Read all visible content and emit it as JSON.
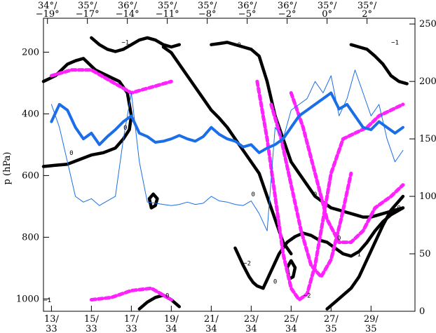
{
  "chart_data": {
    "type": "line",
    "title": "",
    "ylabel_left": "p (hPa)",
    "ylabel_right": "",
    "ylim_left": [
      1040,
      90
    ],
    "ylim_right": [
      0,
      255
    ],
    "xlim": [
      12.6,
      31.2
    ],
    "bottom_ticks": [
      {
        "x": 13,
        "label": "13/\n33"
      },
      {
        "x": 15,
        "label": "15/\n33"
      },
      {
        "x": 17,
        "label": "17/\n33"
      },
      {
        "x": 19,
        "label": "19/\n34"
      },
      {
        "x": 21,
        "label": "21/\n34"
      },
      {
        "x": 23,
        "label": "23/\n34"
      },
      {
        "x": 25,
        "label": "25/\n34"
      },
      {
        "x": 27,
        "label": "27/\n35"
      },
      {
        "x": 29,
        "label": "29/\n35"
      }
    ],
    "top_ticks": [
      {
        "x": 12.8,
        "label": "34°/\n−19°"
      },
      {
        "x": 14.8,
        "label": "35°/\n−17°"
      },
      {
        "x": 16.8,
        "label": "36°/\n−14°"
      },
      {
        "x": 18.8,
        "label": "35°/\n−11°"
      },
      {
        "x": 20.8,
        "label": "35°/\n−8°"
      },
      {
        "x": 22.8,
        "label": "36°/\n−5°"
      },
      {
        "x": 24.8,
        "label": "36°/\n−2°"
      },
      {
        "x": 26.8,
        "label": "35°/\n0°"
      },
      {
        "x": 28.8,
        "label": "35°/\n2°"
      }
    ],
    "left_ticks": [
      200,
      400,
      600,
      800,
      1000
    ],
    "right_ticks": [
      0,
      50,
      100,
      150,
      200,
      250
    ],
    "series": [
      {
        "style": "thick-blue",
        "color": "#1a6ee8",
        "x": [
          13.0,
          13.4,
          13.8,
          14.2,
          14.6,
          15.0,
          15.4,
          15.8,
          16.2,
          16.6,
          17.0,
          17.4,
          17.8,
          18.2,
          18.6,
          19.0,
          19.4,
          19.8,
          20.2,
          20.6,
          21.0,
          21.4,
          21.8,
          22.2,
          22.6,
          23.0,
          23.4,
          23.8,
          24.2,
          24.6,
          25.0,
          25.4,
          25.8,
          26.2,
          26.6,
          27.0,
          27.4,
          27.8,
          28.2,
          28.6,
          29.0,
          29.4,
          29.8,
          30.2,
          30.6
        ],
        "y": [
          165,
          180,
          175,
          160,
          150,
          155,
          145,
          152,
          158,
          165,
          170,
          155,
          152,
          147,
          148,
          150,
          153,
          150,
          148,
          152,
          160,
          154,
          150,
          148,
          143,
          145,
          138,
          142,
          145,
          150,
          160,
          170,
          175,
          180,
          185,
          190,
          176,
          180,
          170,
          160,
          158,
          165,
          160,
          155,
          160
        ]
      },
      {
        "style": "thin-blue",
        "color": "#1a6ee8",
        "x": [
          13.0,
          13.4,
          13.8,
          14.2,
          14.6,
          15.0,
          15.4,
          15.8,
          16.2,
          16.6,
          17.0,
          17.4,
          17.8,
          18.2,
          18.6,
          19.0,
          19.4,
          19.8,
          20.2,
          20.6,
          21.0,
          21.4,
          21.8,
          22.2,
          22.6,
          23.0,
          23.4,
          23.8,
          24.2,
          24.6,
          25.0,
          25.4,
          25.8,
          26.2,
          26.6,
          27.0,
          27.4,
          27.8,
          28.2,
          28.6,
          29.0,
          29.4,
          29.8,
          30.2,
          30.6
        ],
        "y": [
          180,
          160,
          130,
          100,
          95,
          98,
          92,
          96,
          100,
          150,
          190,
          130,
          95,
          94,
          93,
          92,
          93,
          95,
          93,
          94,
          100,
          96,
          95,
          93,
          92,
          96,
          85,
          70,
          160,
          150,
          175,
          180,
          185,
          200,
          190,
          205,
          170,
          185,
          210,
          190,
          170,
          180,
          150,
          130,
          140
        ]
      },
      {
        "style": "dash-magenta",
        "color": "#ff22ff",
        "x": [
          13.0,
          14.0,
          15.0,
          16.0,
          17.0,
          18.0,
          19.0
        ],
        "y": [
          205,
          210,
          210,
          200,
          190,
          195,
          200
        ]
      },
      {
        "style": "dash-magenta",
        "color": "#ff22ff",
        "x": [
          15.0,
          16.0,
          17.0,
          18.0,
          19.0
        ],
        "y": [
          10,
          12,
          18,
          20,
          10
        ]
      },
      {
        "style": "dash-magenta",
        "color": "#ff22ff",
        "x": [
          23.3,
          23.8,
          24.2,
          24.6,
          25.0,
          25.4,
          25.8,
          26.2,
          26.6,
          27.0,
          27.6,
          28.2,
          28.8,
          29.4,
          30.0,
          30.6
        ],
        "y": [
          200,
          150,
          100,
          50,
          20,
          10,
          15,
          40,
          80,
          120,
          150,
          155,
          160,
          170,
          175,
          180
        ]
      },
      {
        "style": "dash-magenta",
        "color": "#ff22ff",
        "x": [
          24.0,
          24.5,
          25.0,
          25.5,
          26.0,
          26.5,
          27.0,
          27.5,
          28.0
        ],
        "y": [
          180,
          150,
          110,
          70,
          40,
          30,
          45,
          80,
          120
        ]
      },
      {
        "style": "dash-magenta",
        "color": "#ff22ff",
        "x": [
          25.0,
          25.6,
          26.2,
          26.8,
          27.4,
          28.0,
          28.6,
          29.2,
          30.0,
          30.6
        ],
        "y": [
          190,
          160,
          120,
          80,
          60,
          60,
          70,
          90,
          100,
          110
        ]
      },
      {
        "style": "contour-black",
        "color": "#000000",
        "x": [
          12.6,
          13.2,
          13.8,
          14.2,
          14.6,
          15.2,
          15.8,
          16.4,
          16.8,
          17.0,
          16.9,
          16.6,
          16.2,
          15.6,
          15.0,
          14.4,
          13.8,
          13.2,
          12.6
        ],
        "y": [
          200,
          205,
          215,
          218,
          220,
          210,
          205,
          200,
          190,
          170,
          158,
          150,
          142,
          138,
          136,
          132,
          128,
          127,
          126
        ]
      },
      {
        "style": "contour-black",
        "color": "#000000",
        "x": [
          15.0,
          15.4,
          15.8,
          16.2,
          16.6,
          17.0,
          17.4,
          17.8,
          18.2,
          18.6,
          19.0,
          19.4
        ],
        "y": [
          238,
          232,
          228,
          226,
          228,
          232,
          236,
          238,
          236,
          232,
          230,
          232
        ]
      },
      {
        "style": "contour-black",
        "color": "#000000",
        "x": [
          21.0,
          21.4,
          21.8,
          22.2,
          22.6,
          23.0,
          23.4,
          23.8,
          24.2,
          24.6,
          25.0,
          25.4,
          25.8,
          26.2,
          26.6,
          27.0,
          27.4,
          27.8,
          28.2,
          28.6,
          29.0,
          29.4,
          29.8,
          30.2,
          30.6
        ],
        "y": [
          232,
          233,
          234,
          232,
          230,
          228,
          222,
          200,
          170,
          150,
          130,
          120,
          110,
          100,
          95,
          90,
          88,
          86,
          84,
          82,
          82,
          84,
          86,
          88,
          90
        ]
      },
      {
        "style": "contour-black",
        "color": "#000000",
        "x": [
          18.6,
          19.0,
          19.4,
          19.8,
          20.2,
          20.6,
          21.0,
          21.4,
          21.8,
          22.2,
          22.6,
          23.0,
          23.4,
          23.8,
          24.2,
          24.6,
          25.0
        ],
        "y": [
          230,
          225,
          215,
          205,
          195,
          185,
          175,
          168,
          160,
          150,
          140,
          130,
          120,
          100,
          80,
          60,
          50
        ]
      },
      {
        "style": "contour-black",
        "color": "#000000",
        "x": [
          23.6,
          24.0,
          24.4,
          24.8,
          25.2,
          25.6,
          26.0,
          26.4,
          26.8,
          27.2,
          27.6,
          28.0,
          28.4,
          28.8,
          29.2,
          29.6,
          30.0,
          30.6
        ],
        "y": [
          20,
          35,
          50,
          60,
          65,
          68,
          66,
          62,
          60,
          55,
          50,
          48,
          52,
          60,
          70,
          78,
          84,
          90
        ]
      },
      {
        "style": "contour-black",
        "color": "#000000",
        "x": [
          24.8,
          25.0,
          25.2,
          25.1,
          24.9,
          24.8
        ],
        "y": [
          38,
          44,
          38,
          30,
          28,
          38
        ]
      },
      {
        "style": "contour-black",
        "color": "#000000",
        "x": [
          17.9,
          18.1,
          18.3,
          18.2,
          18.0,
          17.9
        ],
        "y": [
          98,
          102,
          98,
          92,
          90,
          98
        ]
      },
      {
        "style": "contour-black",
        "color": "#000000",
        "x": [
          17.4,
          17.8,
          18.2,
          18.6,
          19.0,
          19.4
        ],
        "y": [
          2,
          8,
          12,
          14,
          10,
          4
        ]
      },
      {
        "style": "contour-black",
        "color": "#000000",
        "x": [
          26.8,
          27.2,
          27.6,
          28.0,
          28.4,
          28.8,
          29.2,
          29.6,
          30.0,
          30.6
        ],
        "y": [
          2,
          8,
          14,
          20,
          30,
          45,
          60,
          75,
          88,
          100
        ]
      },
      {
        "style": "contour-black",
        "color": "#000000",
        "x": [
          28.0,
          28.4,
          28.8,
          29.2,
          29.6,
          30.0,
          30.4,
          30.8
        ],
        "y": [
          232,
          230,
          228,
          222,
          215,
          205,
          200,
          198
        ]
      },
      {
        "style": "contour-black",
        "color": "#000000",
        "x": [
          22.2,
          22.6,
          22.9,
          23.1,
          23.3,
          23.6
        ],
        "y": [
          55,
          40,
          30,
          25,
          22,
          20
        ]
      }
    ],
    "contour_labels": [
      "0",
      "−1",
      "0",
      "0",
      "0",
      "−1",
      "0",
      "0",
      "0",
      "0",
      "1",
      "−2",
      "0",
      "−1",
      "−2"
    ]
  }
}
